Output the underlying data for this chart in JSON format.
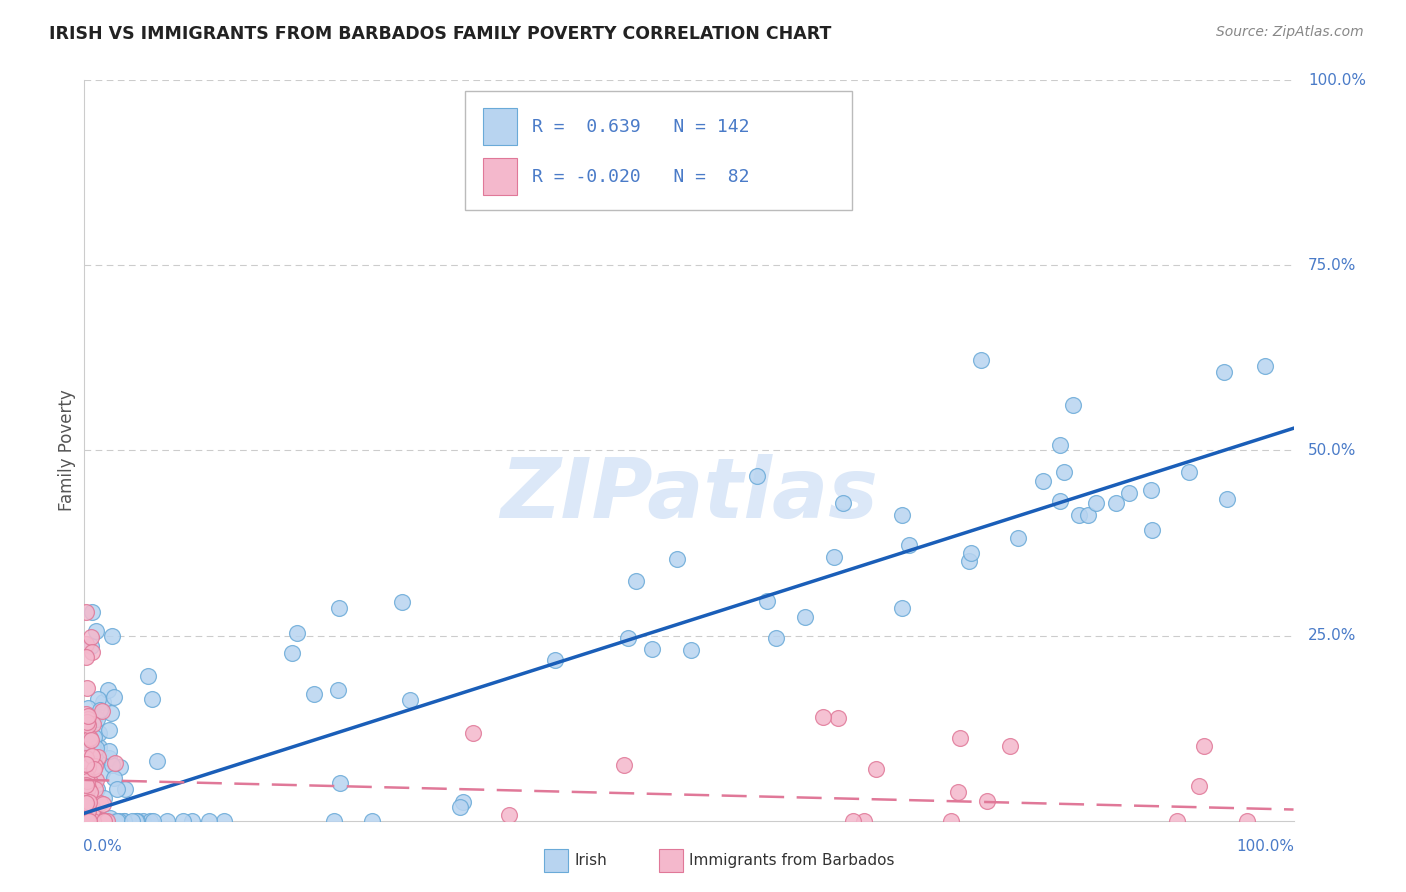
{
  "title": "IRISH VS IMMIGRANTS FROM BARBADOS FAMILY POVERTY CORRELATION CHART",
  "source": "Source: ZipAtlas.com",
  "ylabel": "Family Poverty",
  "legend_irish_r": "0.639",
  "legend_irish_n": "142",
  "legend_barbados_r": "-0.020",
  "legend_barbados_n": "82",
  "irish_color": "#b8d4f0",
  "irish_edge_color": "#6aaad8",
  "barbados_color": "#f4b8cc",
  "barbados_edge_color": "#e07898",
  "regression_irish_color": "#1a5eb8",
  "regression_barbados_color": "#e07898",
  "background_color": "#ffffff",
  "watermark_color": "#dce8f8",
  "grid_color": "#cccccc",
  "axis_label_color": "#4a7bc8",
  "title_color": "#222222",
  "source_color": "#888888",
  "legend_R_color": "#222222",
  "legend_val_color": "#4a7bc8",
  "reg_irish_slope": 0.52,
  "reg_irish_intercept": 0.01,
  "reg_barbados_slope": -0.04,
  "reg_barbados_intercept": 0.055
}
